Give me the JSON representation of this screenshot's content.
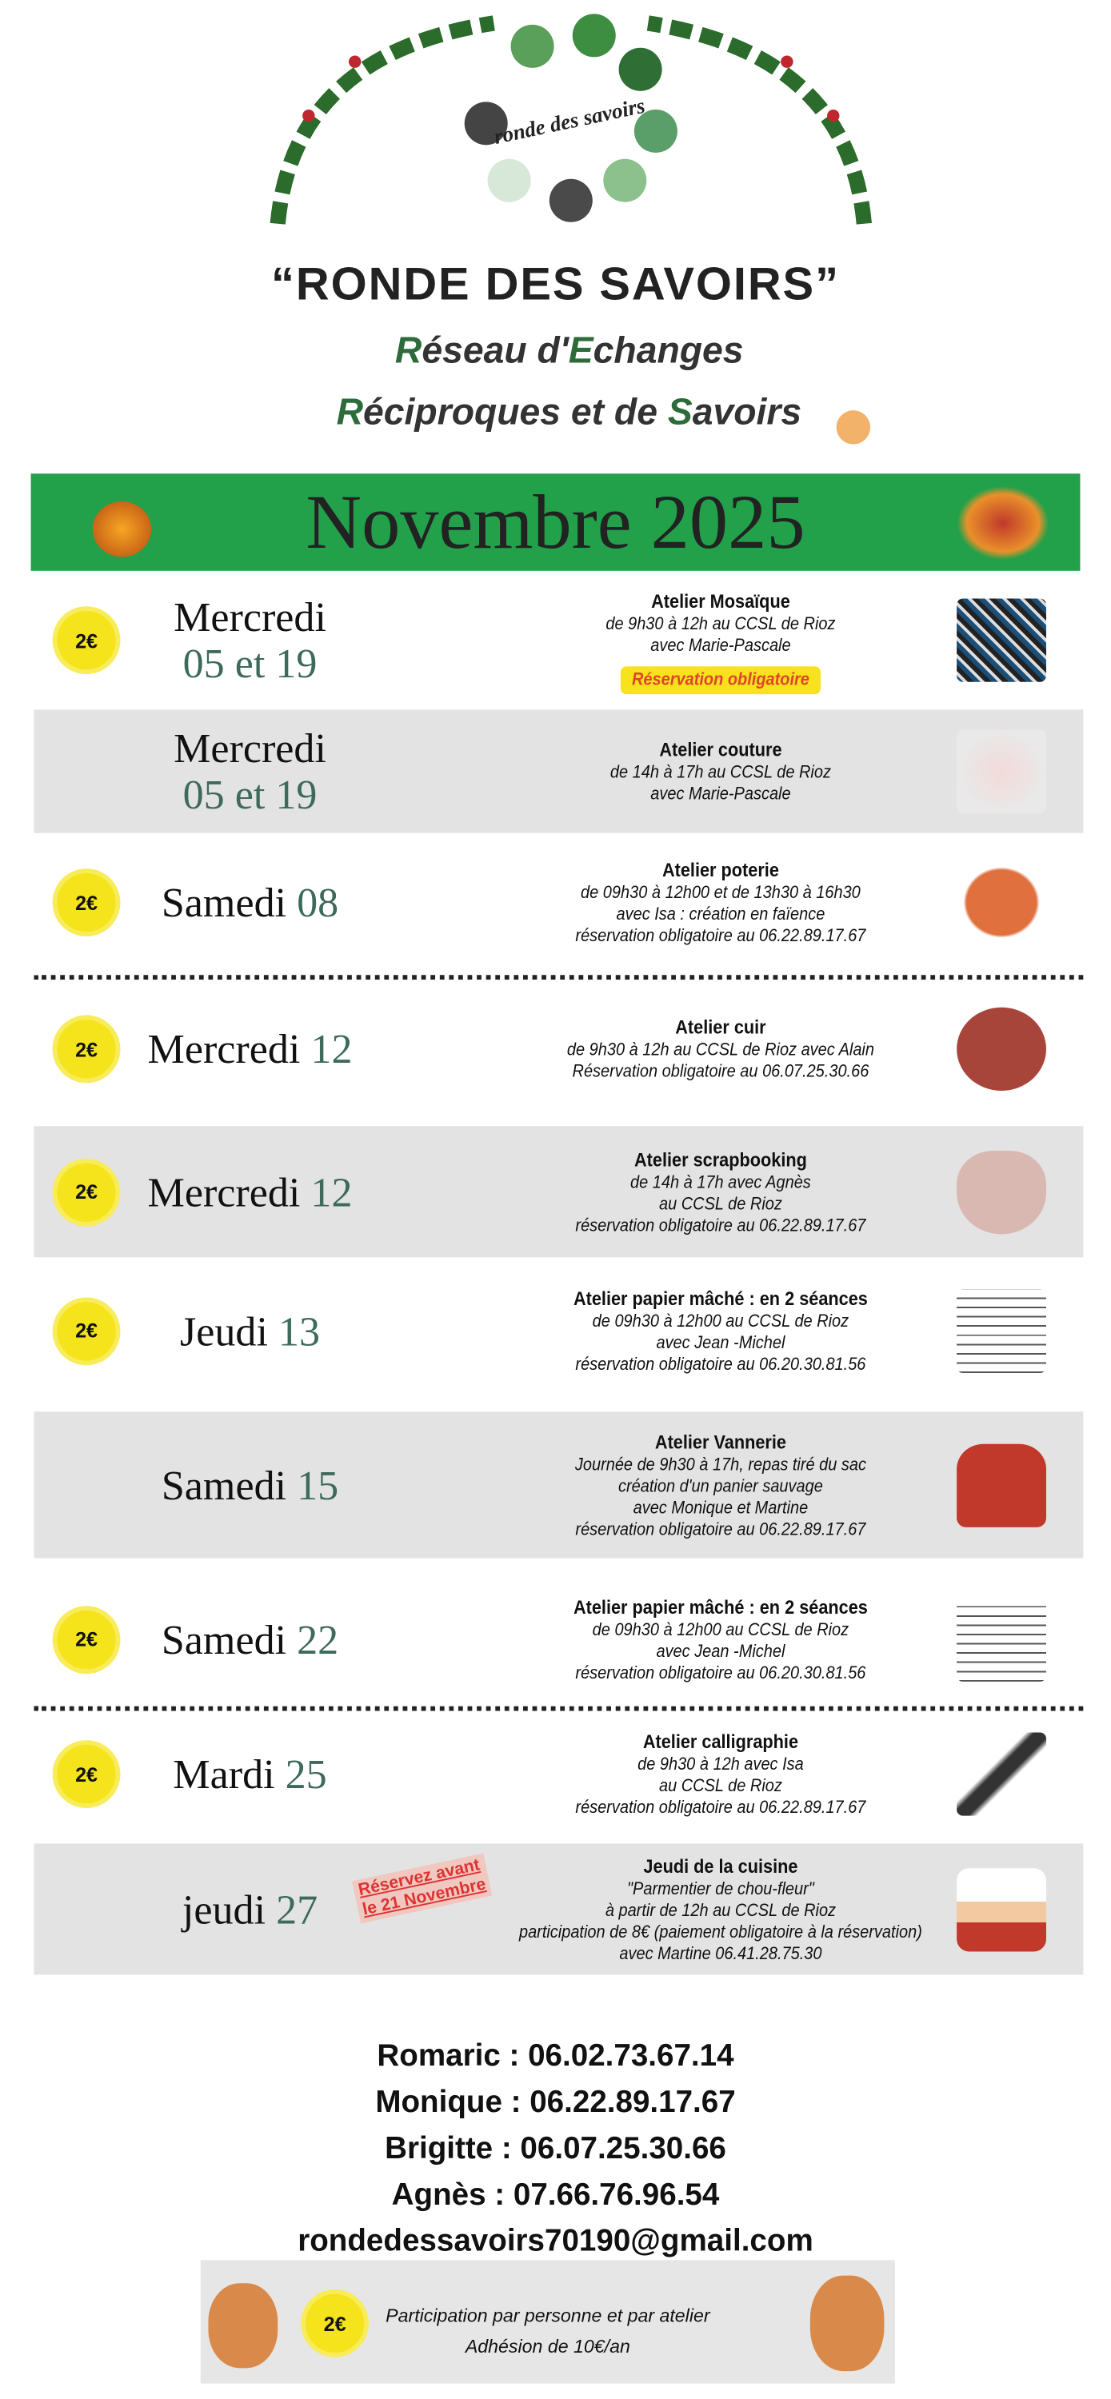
{
  "header": {
    "logo_text": "ronde des savoirs",
    "title": "“RONDE DES SAVOIRS”",
    "subtitle_line1": {
      "cap1": "R",
      "rest1": "éseau d'",
      "cap2": "E",
      "rest2": "changes"
    },
    "subtitle_line2": {
      "cap1": "R",
      "rest1": "éciproques et de ",
      "cap2": "S",
      "rest2": "avoirs"
    }
  },
  "banner": {
    "month": "Novembre 2025",
    "color": "#22a04a"
  },
  "price_badge": "2€",
  "events": [
    {
      "day": "Mercredi",
      "num": "05 et 19",
      "badge": true,
      "title": "Atelier Mosaïque",
      "lines": [
        "de 9h30 à 12h au CCSL de Rioz",
        "avec Marie-Pascale"
      ],
      "reservation": "Réservation obligatoire",
      "icon": "mosaic-image"
    },
    {
      "day": "Mercredi",
      "num": "05 et 19",
      "badge": false,
      "title": "Atelier couture",
      "lines": [
        "de 14h à 17h au CCSL de Rioz",
        "avec Marie-Pascale"
      ],
      "icon": "sewing-image"
    },
    {
      "day": "Samedi",
      "num": "08",
      "badge": true,
      "title": "Atelier poterie",
      "lines": [
        "de 09h30 à 12h00 et de 13h30 à 16h30",
        "avec Isa : création en faïence",
        "réservation obligatoire au 06.22.89.17.67"
      ],
      "icon": "pottery-image"
    },
    {
      "day": "Mercredi",
      "num": "12",
      "badge": true,
      "title": "Atelier cuir",
      "lines": [
        "de 9h30 à 12h au CCSL de Rioz avec Alain",
        "Réservation obligatoire au 06.07.25.30.66"
      ],
      "icon": "leather-tag-image"
    },
    {
      "day": "Mercredi",
      "num": "12",
      "badge": true,
      "title": "Atelier scrapbooking",
      "lines": [
        "de 14h à 17h avec Agnès",
        "au CCSL de Rioz",
        "réservation obligatoire au 06.22.89.17.67"
      ],
      "icon": "heart-image"
    },
    {
      "day": "Jeudi",
      "num": "13",
      "badge": true,
      "title": "Atelier papier mâché : en 2 séances",
      "lines": [
        "de 09h30 à 12h00 au CCSL de Rioz",
        "avec Jean -Michel",
        "réservation obligatoire au 06.20.30.81.56"
      ],
      "icon": "handwriting-image"
    },
    {
      "day": "Samedi",
      "num": "15",
      "badge": false,
      "title": "Atelier Vannerie",
      "lines": [
        "Journée de 9h30 à 17h, repas tiré du sac",
        "création d'un panier sauvage",
        "avec Monique et Martine",
        "réservation obligatoire au 06.22.89.17.67"
      ],
      "icon": "basket-image"
    },
    {
      "day": "Samedi",
      "num": "22",
      "badge": true,
      "title": "Atelier papier mâché : en 2 séances",
      "lines": [
        "de 09h30 à 12h00 au CCSL de Rioz",
        "avec Jean -Michel",
        "réservation obligatoire au 06.20.30.81.56"
      ],
      "icon": "handwriting-image"
    },
    {
      "day": "Mardi",
      "num": "25",
      "badge": true,
      "title": "Atelier calligraphie",
      "lines": [
        "de 9h30 à 12h avec Isa",
        "au CCSL de Rioz",
        "réservation obligatoire au 06.22.89.17.67"
      ],
      "icon": "quill-image"
    },
    {
      "day": "jeudi",
      "num": "27",
      "badge": false,
      "title": "Jeudi de la cuisine",
      "lines": [
        "\"Parmentier de chou-fleur\"",
        "à partir de 12h au CCSL de Rioz",
        "participation de 8€ (paiement obligatoire à la réservation)",
        "avec Martine 06.41.28.75.30"
      ],
      "stamp": [
        "Réservez avant",
        "le 21 Novembre"
      ],
      "icon": "chef-image"
    }
  ],
  "contacts": [
    "Romaric : 06.02.73.67.14",
    "Monique : 06.22.89.17.67",
    "Brigitte : 06.07.25.30.66",
    "Agnès : 07.66.76.96.54",
    "rondedessavoirs70190@gmail.com"
  ],
  "footer": {
    "line1": "Participation par personne et par atelier",
    "line2": "Adhésion de 10€/an"
  }
}
